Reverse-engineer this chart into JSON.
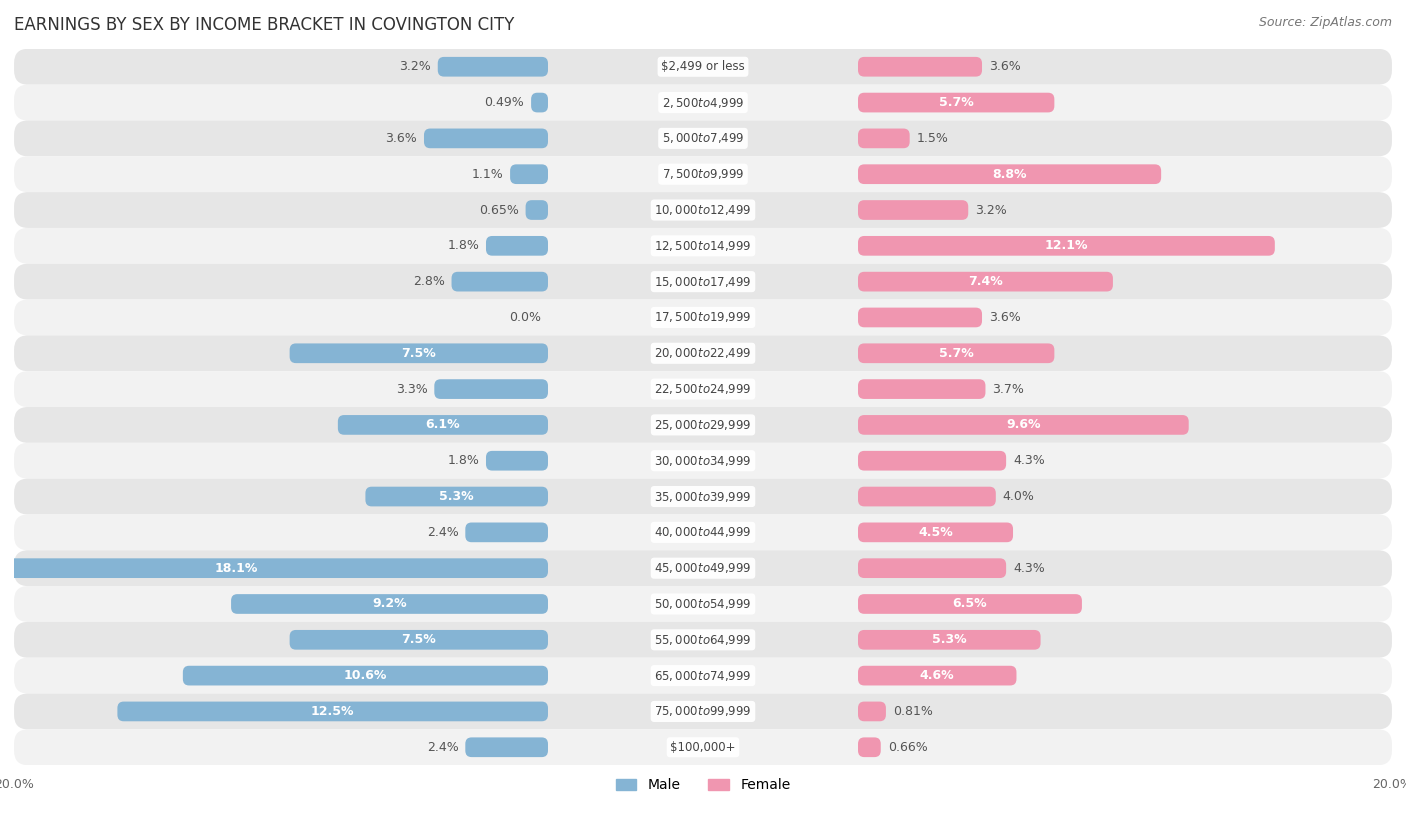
{
  "title": "EARNINGS BY SEX BY INCOME BRACKET IN COVINGTON CITY",
  "source": "Source: ZipAtlas.com",
  "categories": [
    "$2,499 or less",
    "$2,500 to $4,999",
    "$5,000 to $7,499",
    "$7,500 to $9,999",
    "$10,000 to $12,499",
    "$12,500 to $14,999",
    "$15,000 to $17,499",
    "$17,500 to $19,999",
    "$20,000 to $22,499",
    "$22,500 to $24,999",
    "$25,000 to $29,999",
    "$30,000 to $34,999",
    "$35,000 to $39,999",
    "$40,000 to $44,999",
    "$45,000 to $49,999",
    "$50,000 to $54,999",
    "$55,000 to $64,999",
    "$65,000 to $74,999",
    "$75,000 to $99,999",
    "$100,000+"
  ],
  "male": [
    3.2,
    0.49,
    3.6,
    1.1,
    0.65,
    1.8,
    2.8,
    0.0,
    7.5,
    3.3,
    6.1,
    1.8,
    5.3,
    2.4,
    18.1,
    9.2,
    7.5,
    10.6,
    12.5,
    2.4
  ],
  "female": [
    3.6,
    5.7,
    1.5,
    8.8,
    3.2,
    12.1,
    7.4,
    3.6,
    5.7,
    3.7,
    9.6,
    4.3,
    4.0,
    4.5,
    4.3,
    6.5,
    5.3,
    4.6,
    0.81,
    0.66
  ],
  "male_color": "#85b4d4",
  "female_color": "#f096b0",
  "bg_color_light": "#f2f2f2",
  "bg_color_dark": "#e6e6e6",
  "xlim": 20.0,
  "male_threshold": 4.5,
  "female_threshold": 4.5,
  "bar_height": 0.55,
  "title_fontsize": 12,
  "source_fontsize": 9,
  "bar_label_fontsize": 9,
  "category_fontsize": 8.5
}
